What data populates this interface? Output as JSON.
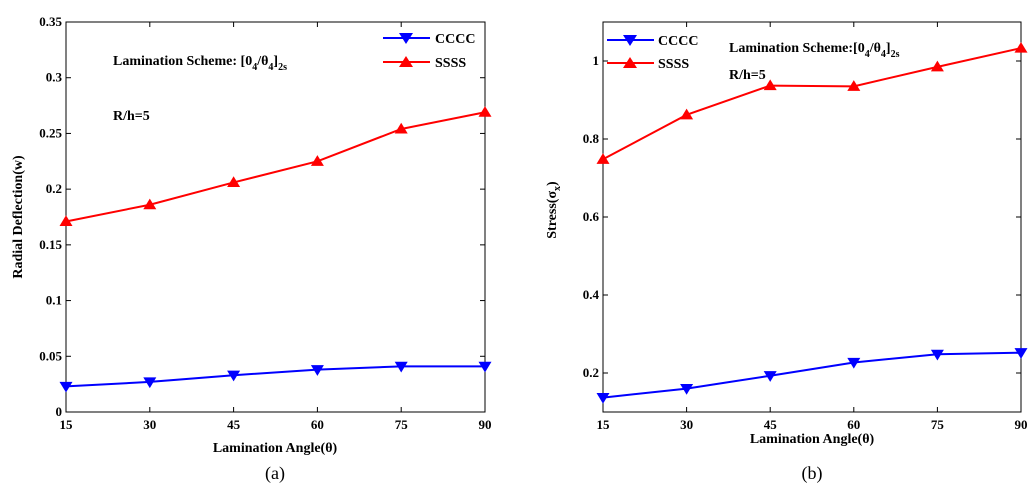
{
  "chart_data": [
    {
      "type": "line",
      "caption": "(a)",
      "x": [
        15,
        30,
        45,
        60,
        75,
        90
      ],
      "xticks": [
        "15",
        "30",
        "45",
        "60",
        "75",
        "90"
      ],
      "yticks": [
        "0",
        "0.05",
        "0.1",
        "0.15",
        "0.2",
        "0.25",
        "0.3",
        "0.35"
      ],
      "xlim": [
        15,
        90
      ],
      "ylim": [
        0,
        0.35
      ],
      "xlabel": "Lamination Angle(θ)",
      "ylabel": "Radial Deflection(w)",
      "annotations": {
        "scheme_prefix": "Lamination Scheme: [0",
        "scheme_sub1": "4",
        "scheme_mid": "/θ",
        "scheme_sub2": "4",
        "scheme_close": "]",
        "scheme_sub3": "2s",
        "ratio": "R/h=5"
      },
      "series": [
        {
          "name": "CCCC",
          "color": "#0000ff",
          "marker": "triangle-down",
          "values": [
            0.023,
            0.027,
            0.033,
            0.038,
            0.041,
            0.041
          ]
        },
        {
          "name": "SSSS",
          "color": "#ff0000",
          "marker": "triangle-up",
          "values": [
            0.171,
            0.186,
            0.206,
            0.225,
            0.254,
            0.269
          ]
        }
      ],
      "grid": false,
      "legend": "top-right"
    },
    {
      "type": "line",
      "caption": "(b)",
      "x": [
        15,
        30,
        45,
        60,
        75,
        90
      ],
      "xticks": [
        "15",
        "30",
        "45",
        "60",
        "75",
        "90"
      ],
      "yticks": [
        "0.2",
        "0.4",
        "0.6",
        "0.8",
        "1"
      ],
      "xlim": [
        15,
        90
      ],
      "ylim": [
        0.1,
        1.1
      ],
      "xlabel": "Lamination Angle(θ)",
      "ylabel": "Stress(σ",
      "ylabel_sub": "x",
      "ylabel_close": ")",
      "annotations": {
        "scheme_prefix": "Lamination Scheme:[0",
        "scheme_sub1": "4",
        "scheme_mid": "/θ",
        "scheme_sub2": "4",
        "scheme_close": "]",
        "scheme_sub3": "2s",
        "ratio": "R/h=5"
      },
      "series": [
        {
          "name": "CCCC",
          "color": "#0000ff",
          "marker": "triangle-down",
          "values": [
            0.137,
            0.16,
            0.193,
            0.227,
            0.248,
            0.252
          ]
        },
        {
          "name": "SSSS",
          "color": "#ff0000",
          "marker": "triangle-up",
          "values": [
            0.748,
            0.862,
            0.937,
            0.935,
            0.985,
            1.033
          ]
        }
      ],
      "grid": false,
      "legend": "top-left"
    }
  ]
}
